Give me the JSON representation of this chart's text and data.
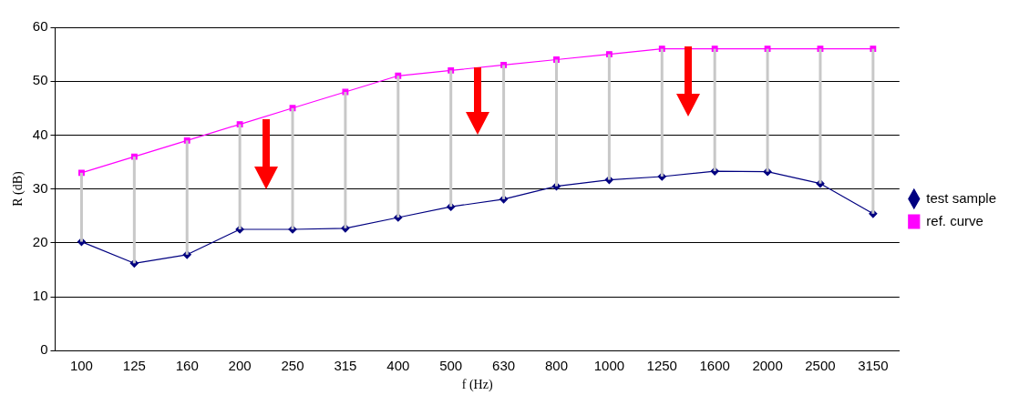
{
  "chart_data": {
    "type": "line",
    "xlabel": "f (Hz)",
    "ylabel": "R (dB)",
    "categories": [
      "100",
      "125",
      "160",
      "200",
      "250",
      "315",
      "400",
      "500",
      "630",
      "800",
      "1000",
      "1250",
      "1600",
      "2000",
      "2500",
      "3150"
    ],
    "series": [
      {
        "name": "test sample",
        "color": "#000080",
        "marker": "diamond",
        "values": [
          20.2,
          16.2,
          17.8,
          22.5,
          22.5,
          22.7,
          24.7,
          26.7,
          28.1,
          30.5,
          31.7,
          32.3,
          33.3,
          33.2,
          31,
          25.4
        ],
        "errors": [
          [
            20.2,
            33
          ],
          [
            16.2,
            36
          ],
          [
            17.8,
            39
          ],
          [
            22.5,
            42
          ],
          [
            22.5,
            45
          ],
          [
            22.7,
            48
          ],
          [
            24.7,
            51
          ],
          [
            26.7,
            52
          ],
          [
            28.1,
            53
          ],
          [
            30.5,
            54
          ],
          [
            31.7,
            55
          ],
          [
            32.3,
            56
          ],
          [
            33.3,
            56
          ],
          [
            33.2,
            56
          ],
          [
            31,
            56
          ],
          [
            25.4,
            56
          ]
        ]
      },
      {
        "name": "ref. curve",
        "color": "#ff00ff",
        "marker": "square",
        "values": [
          33,
          36,
          39,
          42,
          45,
          48,
          51,
          52,
          53,
          54,
          55,
          56,
          56,
          56,
          56,
          56
        ]
      }
    ],
    "ylim": [
      0,
      60
    ],
    "yticks": [
      0,
      10,
      20,
      30,
      40,
      50,
      60
    ],
    "grid": "y",
    "legend": "right"
  }
}
